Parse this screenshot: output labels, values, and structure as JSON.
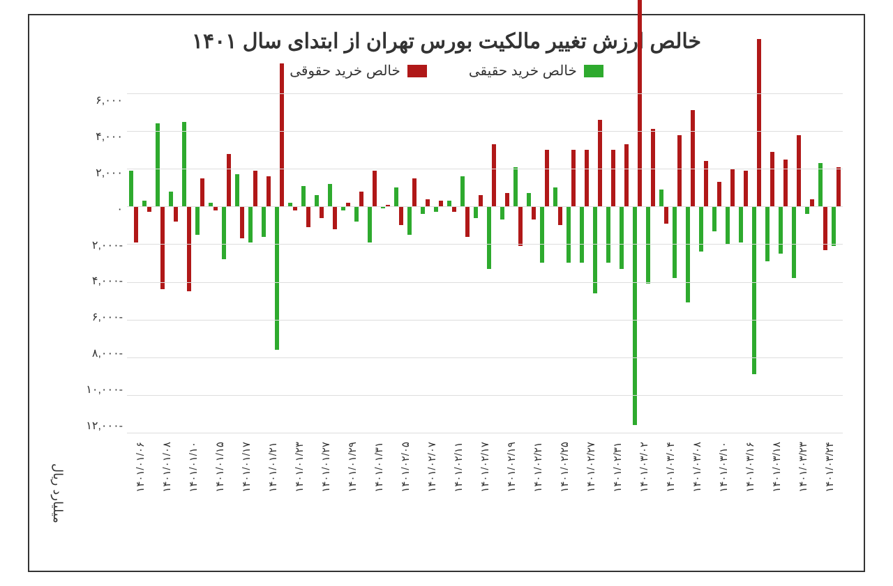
{
  "chart": {
    "type": "bar",
    "title": "خالص ارزش تغییر مالکیت بورس تهران از ابتدای سال ۱۴۰۱",
    "title_fontsize": 30,
    "ylabel": "میلیارد ریال",
    "label_fontsize": 18,
    "background_color": "#ffffff",
    "border_color": "#333333",
    "grid_color": "#dddddd",
    "text_color": "#333333",
    "bar_width": 0.7,
    "ylim": [
      -12000,
      6000
    ],
    "ytick_step": 2000,
    "yticks": [
      6000,
      4000,
      2000,
      0,
      -2000,
      -4000,
      -6000,
      -8000,
      -10000,
      -12000
    ],
    "ytick_labels": [
      "۶,۰۰۰",
      "۴,۰۰۰",
      "۲,۰۰۰",
      "۰",
      "-۲,۰۰۰",
      "-۴,۰۰۰",
      "-۶,۰۰۰",
      "-۸,۰۰۰",
      "-۱۰,۰۰۰",
      "-۱۲,۰۰۰"
    ],
    "legend": [
      {
        "label": "خالص خرید حقیقی",
        "color": "#2eaa2e"
      },
      {
        "label": "خالص خرید حقوقی",
        "color": "#b01818"
      }
    ],
    "series": [
      {
        "name": "haghighi",
        "color": "#2eaa2e",
        "values": [
          1900,
          300,
          4400,
          800,
          4500,
          -1500,
          200,
          -2800,
          1700,
          -1900,
          -1600,
          -7600,
          200,
          1100,
          600,
          1200,
          -200,
          -800,
          -1900,
          -100,
          1000,
          -1500,
          -400,
          -300,
          300,
          1600,
          -600,
          -3300,
          -700,
          2100,
          700,
          -3000,
          1000,
          -3000,
          -3000,
          -4600,
          -3000,
          -3300,
          -11600,
          -4100,
          900,
          -3800,
          -5100,
          -2400,
          -1300,
          -2000,
          -1900,
          -8900,
          -2900,
          -2500,
          -3800,
          -400,
          2300,
          -2100
        ]
      },
      {
        "name": "hoghooghi",
        "color": "#b01818",
        "values": [
          -1900,
          -300,
          -4400,
          -800,
          -4500,
          1500,
          -200,
          2800,
          -1700,
          1900,
          1600,
          7600,
          -200,
          -1100,
          -600,
          -1200,
          200,
          800,
          1900,
          100,
          -1000,
          1500,
          400,
          300,
          -300,
          -1600,
          600,
          3300,
          700,
          -2100,
          -700,
          3000,
          -1000,
          3000,
          3000,
          4600,
          3000,
          3300,
          11600,
          4100,
          -900,
          3800,
          5100,
          2400,
          1300,
          2000,
          1900,
          8900,
          2900,
          2500,
          3800,
          400,
          -2300,
          2100
        ]
      }
    ],
    "categories": [
      "۱۴۰۱/۰۱/۰۶",
      "",
      "۱۴۰۱/۰۱/۰۸",
      "",
      "۱۴۰۱/۰۱/۱۰",
      "",
      "۱۴۰۱/۰۱/۱۵",
      "",
      "۱۴۰۱/۰۱/۱۷",
      "",
      "۱۴۰۱/۰۱/۲۱",
      "",
      "۱۴۰۱/۰۱/۲۳",
      "",
      "۱۴۰۱/۰۱/۲۷",
      "",
      "۱۴۰۱/۰۱/۲۹",
      "",
      "۱۴۰۱/۰۱/۳۱",
      "",
      "۱۴۰۱/۰۲/۰۵",
      "",
      "۱۴۰۱/۰۲/۰۷",
      "",
      "۱۴۰۱/۰۲/۱۱",
      "",
      "۱۴۰۱/۰۲/۱۷",
      "",
      "۱۴۰۱/۰۲/۱۹",
      "",
      "۱۴۰۱/۰۲/۲۱",
      "",
      "۱۴۰۱/۰۲/۲۵",
      "",
      "۱۴۰۱/۰۲/۲۷",
      "",
      "۱۴۰۱/۰۲/۳۱",
      "",
      "۱۴۰۱/۰۳/۰۲",
      "",
      "۱۴۰۱/۰۳/۰۴",
      "",
      "۱۴۰۱/۰۳/۰۸",
      "",
      "۱۴۰۱/۰۳/۱۰",
      "",
      "۱۴۰۱/۰۳/۱۶",
      "",
      "۱۴۰۱/۰۳/۱۸",
      "",
      "۱۴۰۱/۰۳/۲۳",
      "",
      "۱۴۰۱/۰۳/۲۴"
    ]
  }
}
